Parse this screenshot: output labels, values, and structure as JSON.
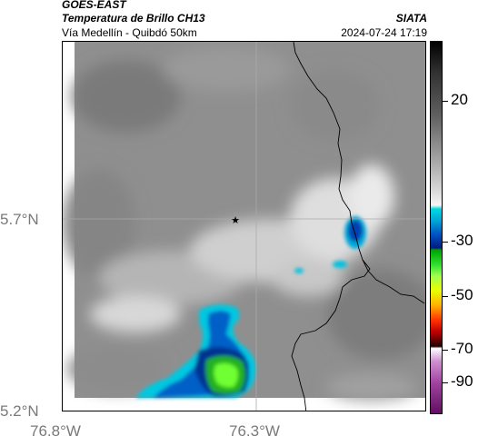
{
  "header": {
    "line1": "GOES-EAST",
    "line2": "Temperatura de Brillo CH13",
    "line3": "Vía Medellín - Quibdó 50km",
    "agency": "SIATA",
    "timestamp": "2024-07-24 17:19"
  },
  "axes": {
    "y_labels": [
      "5.7°N",
      "5.2°N"
    ],
    "x_labels": [
      "76.8°W",
      "76.3°W"
    ]
  },
  "colorbar": {
    "labels": [
      "20",
      "-30",
      "-50",
      "-70",
      "-90"
    ]
  },
  "map": {
    "marker": "star-marker",
    "grid": true
  }
}
